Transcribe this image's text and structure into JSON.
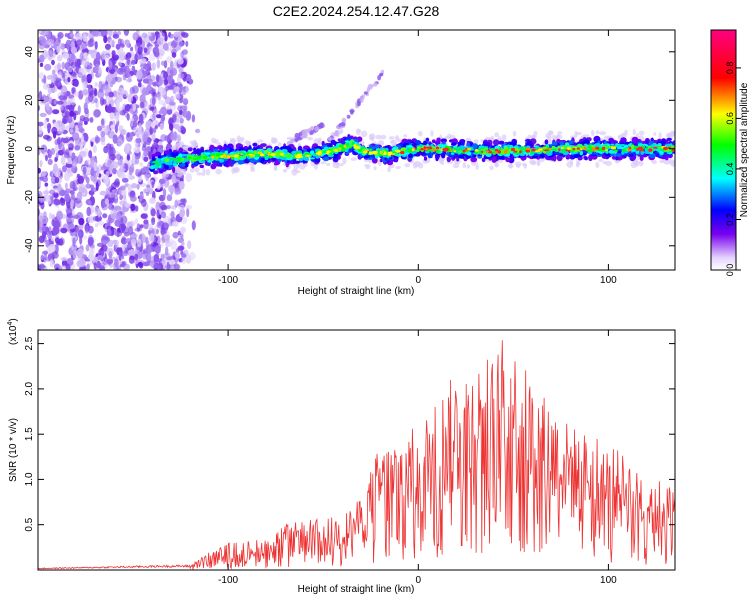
{
  "figure": {
    "title": "C2E2.2024.254.12.47.G28"
  },
  "chart_data": [
    {
      "type": "heatmap",
      "xlabel": "Height of straight line (km)",
      "ylabel": "Frequency (Hz)",
      "xlim": [
        -200,
        135
      ],
      "ylim": [
        -50,
        49
      ],
      "xticks": [
        -100,
        0,
        100
      ],
      "yticks": [
        -40,
        -20,
        0,
        20,
        40
      ],
      "colorbar": {
        "label": "Normalized spectral amplitude",
        "range": [
          0.0,
          0.95
        ],
        "ticks": [
          0.0,
          0.2,
          0.4,
          0.6,
          0.8
        ],
        "colors": [
          "#ffffff",
          "#7700ee",
          "#0000ff",
          "#00ffff",
          "#00ff00",
          "#ffff00",
          "#ff0000",
          "#ff0080"
        ]
      },
      "noise_region": {
        "x": [
          -200,
          -122
        ],
        "y": [
          -50,
          49
        ]
      },
      "ridge": [
        {
          "x": -140,
          "y": -6
        },
        {
          "x": -120,
          "y": -4
        },
        {
          "x": -100,
          "y": -3
        },
        {
          "x": -80,
          "y": -2
        },
        {
          "x": -60,
          "y": -3
        },
        {
          "x": -45,
          "y": -1
        },
        {
          "x": -35,
          "y": 2
        },
        {
          "x": -28,
          "y": -1
        },
        {
          "x": -15,
          "y": -2
        },
        {
          "x": 0,
          "y": 0
        },
        {
          "x": 40,
          "y": -1
        },
        {
          "x": 80,
          "y": 0
        },
        {
          "x": 135,
          "y": 0
        }
      ],
      "branches": [
        {
          "x": [
            -68,
            -50
          ],
          "y": [
            3,
            10
          ]
        },
        {
          "x": [
            -48,
            -18
          ],
          "y": [
            2,
            32
          ]
        }
      ]
    },
    {
      "type": "line",
      "xlabel": "Height of straight line (km)",
      "ylabel": "SNR (10 * v/v)",
      "y_multiplier_base": "(x10",
      "y_multiplier_exp": "4",
      "y_multiplier_close": ")",
      "xlim": [
        -200,
        135
      ],
      "ylim": [
        0,
        2.65
      ],
      "xticks": [
        -100,
        0,
        100
      ],
      "yticks": [
        0.5,
        1.0,
        1.5,
        2.0,
        2.5
      ],
      "ytick_labels": [
        "0.5",
        "1.0",
        "1.5",
        "2.0",
        "2.5"
      ],
      "color": "#ee3333",
      "envelope": [
        {
          "x": -200,
          "y": 0.02
        },
        {
          "x": -130,
          "y": 0.05
        },
        {
          "x": -120,
          "y": 0.05
        },
        {
          "x": -110,
          "y": 0.2
        },
        {
          "x": -100,
          "y": 0.3
        },
        {
          "x": -80,
          "y": 0.35
        },
        {
          "x": -70,
          "y": 0.5
        },
        {
          "x": -60,
          "y": 0.55
        },
        {
          "x": -40,
          "y": 0.6
        },
        {
          "x": -30,
          "y": 0.8
        },
        {
          "x": -22,
          "y": 1.3
        },
        {
          "x": -10,
          "y": 1.5
        },
        {
          "x": 0,
          "y": 1.6
        },
        {
          "x": 10,
          "y": 1.9
        },
        {
          "x": 20,
          "y": 2.2
        },
        {
          "x": 30,
          "y": 2.3
        },
        {
          "x": 40,
          "y": 2.4
        },
        {
          "x": 46,
          "y": 2.62
        },
        {
          "x": 60,
          "y": 2.1
        },
        {
          "x": 80,
          "y": 1.6
        },
        {
          "x": 100,
          "y": 1.4
        },
        {
          "x": 120,
          "y": 1.1
        },
        {
          "x": 135,
          "y": 0.9
        }
      ]
    }
  ]
}
